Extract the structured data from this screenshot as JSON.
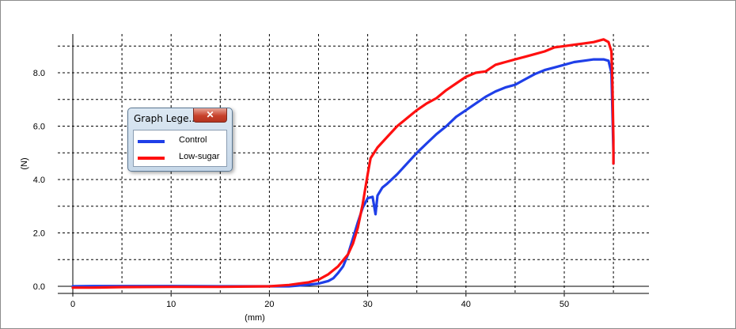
{
  "chart_data": {
    "type": "line",
    "xlabel": "(mm)",
    "ylabel": "(N)",
    "xlim": [
      -1,
      55.5
    ],
    "ylim": [
      -0.25,
      9.5
    ],
    "x_ticks": [
      0,
      10,
      20,
      30,
      40,
      50
    ],
    "y_ticks": [
      0.0,
      2.0,
      4.0,
      6.0,
      8.0
    ],
    "y_tick_labels": [
      "0.0",
      "2.0",
      "4.0",
      "6.0",
      "8.0"
    ],
    "grid": true,
    "legend_position": "floating window, upper-left",
    "series": [
      {
        "name": "Control",
        "color": "#1f3fe8",
        "points": [
          [
            0,
            0.0
          ],
          [
            2,
            0.01
          ],
          [
            5,
            0.01
          ],
          [
            10,
            0.01
          ],
          [
            15,
            0.0
          ],
          [
            20,
            0.0
          ],
          [
            22,
            0.0
          ],
          [
            23,
            0.03
          ],
          [
            24,
            0.06
          ],
          [
            25,
            0.1
          ],
          [
            26,
            0.2
          ],
          [
            26.5,
            0.3
          ],
          [
            27,
            0.5
          ],
          [
            27.5,
            0.75
          ],
          [
            28,
            1.2
          ],
          [
            28.5,
            1.8
          ],
          [
            29,
            2.4
          ],
          [
            29.5,
            2.95
          ],
          [
            30,
            3.3
          ],
          [
            30.5,
            3.35
          ],
          [
            30.8,
            2.7
          ],
          [
            31,
            3.4
          ],
          [
            31.5,
            3.7
          ],
          [
            32,
            3.85
          ],
          [
            33,
            4.2
          ],
          [
            34,
            4.6
          ],
          [
            35,
            5.0
          ],
          [
            36,
            5.35
          ],
          [
            37,
            5.7
          ],
          [
            38,
            6.0
          ],
          [
            39,
            6.35
          ],
          [
            40,
            6.6
          ],
          [
            41,
            6.85
          ],
          [
            42,
            7.1
          ],
          [
            43,
            7.3
          ],
          [
            44,
            7.45
          ],
          [
            45,
            7.55
          ],
          [
            46,
            7.75
          ],
          [
            47,
            7.95
          ],
          [
            48,
            8.1
          ],
          [
            49,
            8.2
          ],
          [
            50,
            8.3
          ],
          [
            51,
            8.4
          ],
          [
            52,
            8.45
          ],
          [
            53,
            8.5
          ],
          [
            54,
            8.5
          ],
          [
            54.5,
            8.45
          ],
          [
            54.8,
            8.0
          ],
          [
            54.9,
            6.5
          ],
          [
            55.0,
            5.0
          ],
          [
            55.0,
            4.6
          ]
        ]
      },
      {
        "name": "Low-sugar",
        "color": "#ff1010",
        "points": [
          [
            0,
            -0.05
          ],
          [
            2,
            -0.05
          ],
          [
            5,
            -0.03
          ],
          [
            10,
            -0.02
          ],
          [
            15,
            -0.02
          ],
          [
            20,
            0.0
          ],
          [
            22,
            0.05
          ],
          [
            23,
            0.1
          ],
          [
            24,
            0.15
          ],
          [
            25,
            0.25
          ],
          [
            26,
            0.45
          ],
          [
            27,
            0.75
          ],
          [
            28,
            1.2
          ],
          [
            28.5,
            1.6
          ],
          [
            29,
            2.2
          ],
          [
            29.5,
            3.1
          ],
          [
            30,
            4.2
          ],
          [
            30.3,
            4.8
          ],
          [
            31,
            5.2
          ],
          [
            32,
            5.6
          ],
          [
            33,
            6.0
          ],
          [
            34,
            6.3
          ],
          [
            35,
            6.6
          ],
          [
            36,
            6.85
          ],
          [
            37,
            7.05
          ],
          [
            38,
            7.35
          ],
          [
            39,
            7.6
          ],
          [
            40,
            7.85
          ],
          [
            41,
            8.0
          ],
          [
            42,
            8.05
          ],
          [
            43,
            8.3
          ],
          [
            44,
            8.4
          ],
          [
            45,
            8.5
          ],
          [
            46,
            8.6
          ],
          [
            47,
            8.7
          ],
          [
            48,
            8.8
          ],
          [
            49,
            8.95
          ],
          [
            50,
            9.0
          ],
          [
            51,
            9.05
          ],
          [
            52,
            9.1
          ],
          [
            53,
            9.15
          ],
          [
            54,
            9.25
          ],
          [
            54.5,
            9.15
          ],
          [
            54.8,
            8.8
          ],
          [
            54.9,
            7.5
          ],
          [
            55.0,
            5.5
          ],
          [
            55.0,
            4.6
          ]
        ]
      }
    ]
  },
  "legend": {
    "title": "Graph Lege...",
    "close_glyph": "✕",
    "items": [
      {
        "label": "Control",
        "color": "#1f3fe8"
      },
      {
        "label": "Low-sugar",
        "color": "#ff1010"
      }
    ]
  }
}
